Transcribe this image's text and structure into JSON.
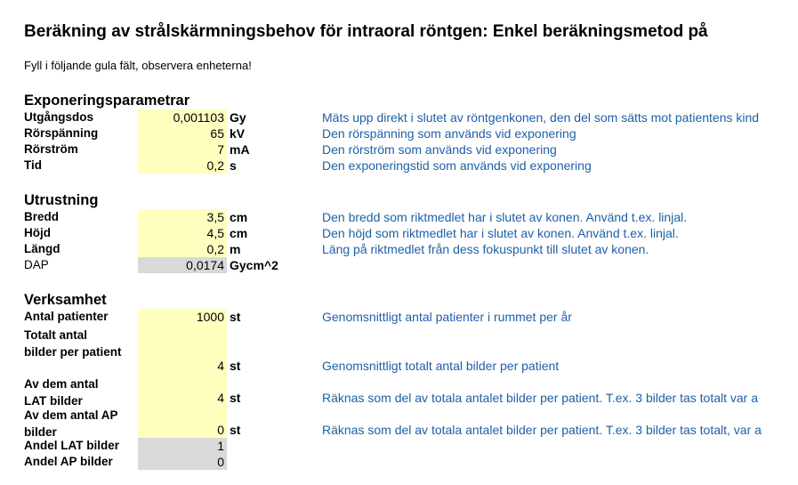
{
  "title": "Beräkning av strålskärmningsbehov för intraoral röntgen: Enkel beräkningsmetod på",
  "instruction": "Fyll i följande gula fält, observera enheterna!",
  "exponering": {
    "heading": "Exponeringsparametrar",
    "rows": [
      {
        "label": "Utgångsdos",
        "value": "0,001103",
        "unit": "Gy",
        "desc": "Mäts upp direkt i slutet av röntgenkonen, den del som sätts mot patientens kind"
      },
      {
        "label": "Rörspänning",
        "value": "65",
        "unit": "kV",
        "desc": "Den rörspänning som används vid exponering"
      },
      {
        "label": "Rörström",
        "value": "7",
        "unit": "mA",
        "desc": "Den rörström som används vid exponering"
      },
      {
        "label": "Tid",
        "value": "0,2",
        "unit": "s",
        "desc": "Den exponeringstid som används vid exponering"
      }
    ]
  },
  "utrustning": {
    "heading": "Utrustning",
    "rows": [
      {
        "label": "Bredd",
        "value": "3,5",
        "unit": "cm",
        "desc": "Den bredd som riktmedlet har i slutet av konen. Använd t.ex. linjal."
      },
      {
        "label": "Höjd",
        "value": "4,5",
        "unit": "cm",
        "desc": "Den höjd som riktmedlet har i slutet av konen. Använd t.ex. linjal."
      },
      {
        "label": "Längd",
        "value": "0,2",
        "unit": "m",
        "desc": "Läng på riktmedlet från dess fokuspunkt till slutet av konen."
      },
      {
        "label": "DAP",
        "value": "0,0174",
        "unit": "Gycm^2",
        "desc": ""
      }
    ]
  },
  "verksamhet": {
    "heading": "Verksamhet",
    "antal_patienter": {
      "label": "Antal patienter",
      "value": "1000",
      "unit": "st",
      "desc": "Genomsnittligt antal patienter i rummet per år"
    },
    "totalt": {
      "label_line1": "Totalt antal",
      "label_line2": "bilder per patient",
      "value": "4",
      "unit": "st",
      "desc": "Genomsnittligt totalt antal bilder per patient"
    },
    "lat": {
      "label_line1": "Av dem antal",
      "label_line2": "LAT bilder",
      "value": "4",
      "unit": "st",
      "desc": "Räknas som del av totala antalet bilder per patient. T.ex. 3 bilder tas totalt var a"
    },
    "ap": {
      "label_line1": "Av dem antal AP",
      "label_line2": "bilder",
      "value": "0",
      "unit": "st",
      "desc": "Räknas som del av totala antalet bilder per patient. T.ex. 3 bilder tas totalt, var a"
    },
    "andel_lat": {
      "label": "Andel LAT bilder",
      "value": "1"
    },
    "andel_ap": {
      "label": "Andel AP bilder",
      "value": "0"
    }
  }
}
